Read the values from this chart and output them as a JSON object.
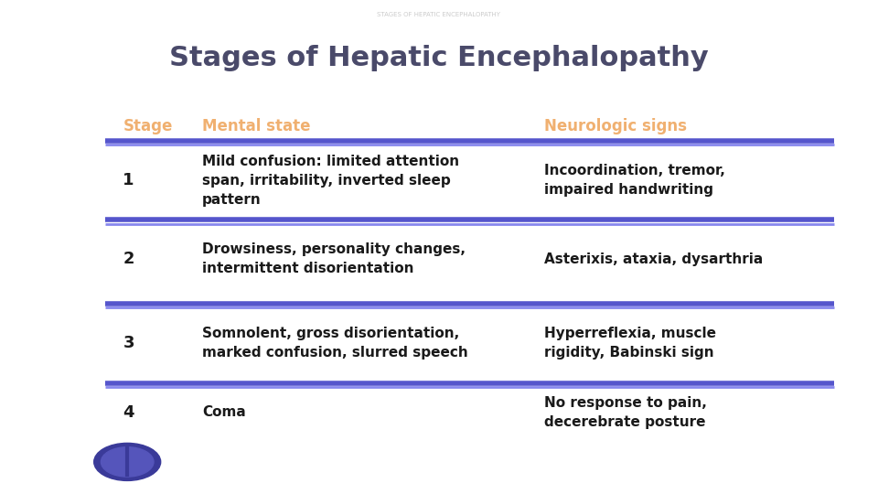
{
  "supertitle": "STAGES OF HEPATIC ENCEPHALOPATHY",
  "title": "Stages of Hepatic Encephalopathy",
  "title_color": "#4a4a6a",
  "supertitle_color": "#cccccc",
  "header_color": "#f0b070",
  "header_stage": "Stage",
  "header_mental": "Mental state",
  "header_neuro": "Neurologic signs",
  "divider_color_top": "#6060cc",
  "divider_color_bottom": "#8888dd",
  "text_color": "#1a1a1a",
  "background_color": "#ffffff",
  "rows": [
    {
      "stage": "1",
      "mental": "Mild confusion: limited attention\nspan, irritability, inverted sleep\npattern",
      "neuro": "Incoordination, tremor,\nimpaired handwriting"
    },
    {
      "stage": "2",
      "mental": "Drowsiness, personality changes,\nintermittent disorientation",
      "neuro": "Asterixis, ataxia, dysarthria"
    },
    {
      "stage": "3",
      "mental": "Somnolent, gross disorientation,\nmarked confusion, slurred speech",
      "neuro": "Hyperreflexia, muscle\nrigidity, Babinski sign"
    },
    {
      "stage": "4",
      "mental": "Coma",
      "neuro": "No response to pain,\ndecerebrate posture"
    }
  ]
}
